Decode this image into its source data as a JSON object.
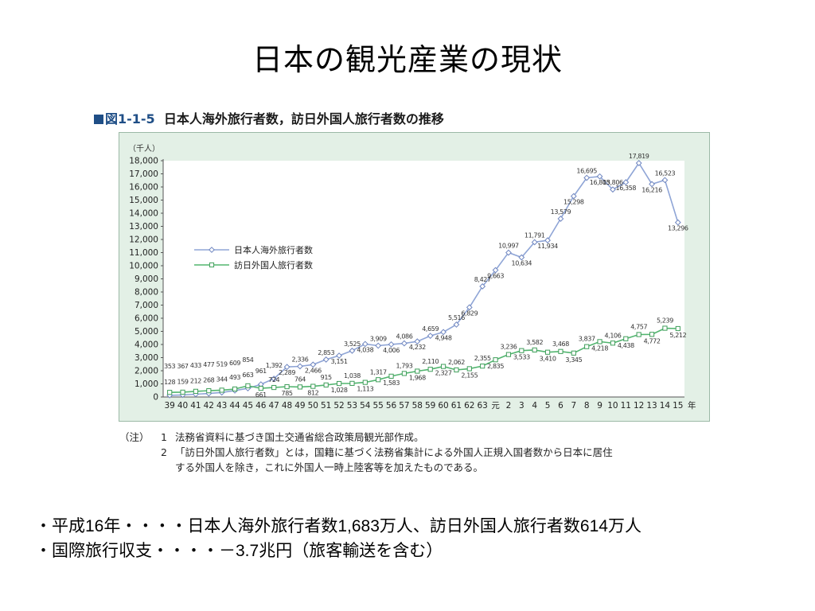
{
  "slide": {
    "title": "日本の観光産業の現状",
    "bullets": [
      "・平成16年・・・・日本人海外旅行者数1,683万人、訪日外国人旅行者数614万人",
      "・国際旅行収支・・・・－3.7兆円（旅客輸送を含む）"
    ]
  },
  "figure": {
    "number": "図1-1-5",
    "title": "日本人海外旅行者数，訪日外国人旅行者数の推移",
    "notes": {
      "label": "（注）",
      "items": [
        {
          "num": "1",
          "text": "法務省資料に基づき国土交通省総合政策局観光部作成。"
        },
        {
          "num": "2",
          "text": "「訪日外国人旅行者数」とは，国籍に基づく法務省集計による外国人正規入国者数から日本に居住",
          "cont": "する外国人を除き，これに外国人一時上陸客等を加えたものである。"
        }
      ]
    }
  },
  "chart_data": {
    "type": "line",
    "ylabel": "（千人）",
    "xlabel": "年",
    "ylim": [
      0,
      18000
    ],
    "yticks": [
      "0",
      "1,000",
      "2,000",
      "3,000",
      "4,000",
      "5,000",
      "6,000",
      "7,000",
      "8,000",
      "9,000",
      "10,000",
      "11,000",
      "12,000",
      "13,000",
      "14,000",
      "15,000",
      "16,000",
      "17,000",
      "18,000"
    ],
    "categories": [
      "39",
      "40",
      "41",
      "42",
      "43",
      "44",
      "45",
      "46",
      "47",
      "48",
      "49",
      "50",
      "51",
      "52",
      "53",
      "54",
      "55",
      "56",
      "57",
      "58",
      "59",
      "60",
      "61",
      "62",
      "63",
      "元",
      "2",
      "3",
      "4",
      "5",
      "6",
      "7",
      "8",
      "9",
      "10",
      "11",
      "12",
      "13",
      "14",
      "15"
    ],
    "legend_position": "center-left",
    "grid": false,
    "colors": {
      "outbound": "#8fa5d6",
      "inbound": "#52b56f",
      "frame": "#e3f0e6",
      "plot": "#ffffff"
    },
    "series": [
      {
        "name": "日本人海外旅行者数",
        "marker": "diamond",
        "values": [
          128,
          159,
          212,
          268,
          344,
          493,
          663,
          961,
          1392,
          2289,
          2336,
          2466,
          2853,
          3151,
          3525,
          4038,
          3909,
          4006,
          4086,
          4232,
          4659,
          4948,
          5516,
          6829,
          8427,
          9663,
          10997,
          10634,
          11791,
          11934,
          13579,
          15298,
          16695,
          16803,
          15806,
          16358,
          17819,
          16216,
          16523,
          13296
        ],
        "labels": [
          "128",
          "159",
          "212",
          "268",
          "344",
          "493",
          "663",
          "961",
          "1,392",
          "2,289",
          "2,336",
          "2,466",
          "2,853",
          "3,151",
          "3,525",
          "4,038",
          "3,909",
          "4,006",
          "4,086",
          "4,232",
          "4,659",
          "4,948",
          "5,516",
          "6,829",
          "8,427",
          "9,663",
          "10,997",
          "10,634",
          "11,791",
          "11,934",
          "13,579",
          "15,298",
          "16,695",
          "16,803",
          "15,806",
          "16,358",
          "17,819",
          "16,216",
          "16,523",
          "13,296"
        ]
      },
      {
        "name": "訪日外国人旅行者数",
        "marker": "square",
        "values": [
          353,
          367,
          433,
          477,
          519,
          609,
          854,
          661,
          724,
          785,
          764,
          812,
          915,
          1028,
          1038,
          1113,
          1317,
          1583,
          1793,
          1968,
          2110,
          2327,
          2062,
          2155,
          2355,
          2835,
          3236,
          3533,
          3582,
          3410,
          3468,
          3345,
          3837,
          4218,
          4106,
          4438,
          4757,
          4772,
          5239,
          5212
        ],
        "labels": [
          "353",
          "367",
          "433",
          "477",
          "519",
          "609",
          "854",
          "661",
          "724",
          "785",
          "764",
          "812",
          "915",
          "1,028",
          "1,038",
          "1,113",
          "1,317",
          "1,583",
          "1,793",
          "1,968",
          "2,110",
          "2,327",
          "2,062",
          "2,155",
          "2,355",
          "2,835",
          "3,236",
          "3,533",
          "3,582",
          "3,410",
          "3,468",
          "3,345",
          "3,837",
          "4,218",
          "4,106",
          "4,438",
          "4,757",
          "4,772",
          "5,239",
          "5,212"
        ]
      }
    ]
  }
}
